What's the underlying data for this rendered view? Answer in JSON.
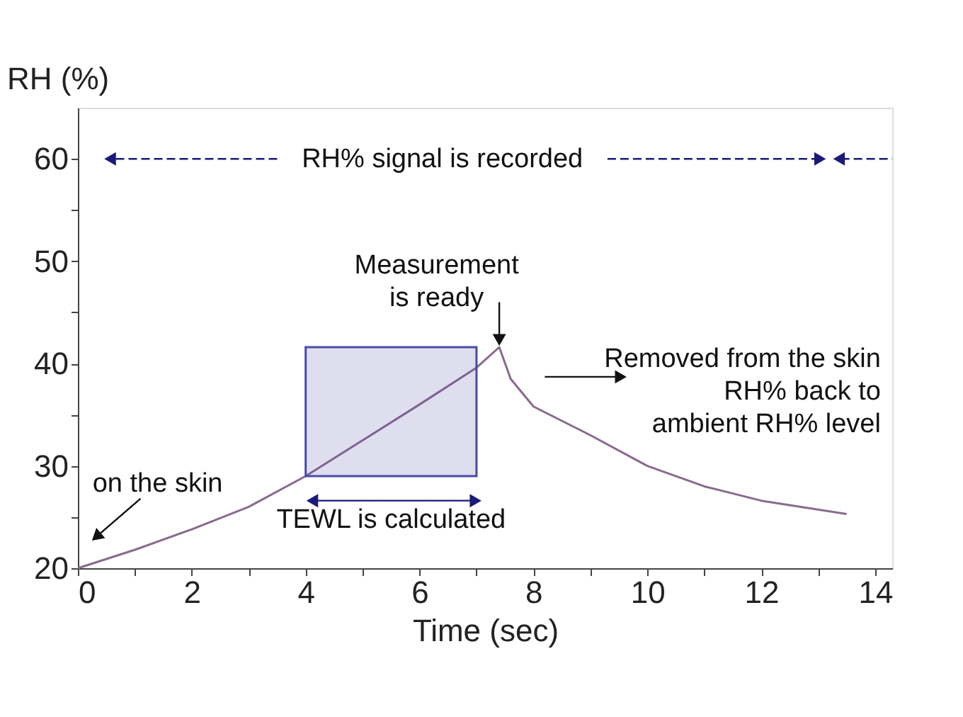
{
  "chart_data": {
    "type": "line",
    "xlabel": "Time (sec)",
    "ylabel": "RH (%)",
    "xlim": [
      0,
      14.3
    ],
    "ylim": [
      20,
      65
    ],
    "xticks": [
      0,
      {
        "value": 1,
        "label": null
      },
      2,
      {
        "value": 3,
        "label": null
      },
      4,
      {
        "value": 5,
        "label": null
      },
      6,
      {
        "value": 7,
        "label": null
      },
      8,
      {
        "value": 9,
        "label": null
      },
      10,
      {
        "value": 11,
        "label": null
      },
      12,
      {
        "value": 13,
        "label": null
      },
      14
    ],
    "yticks": [
      20,
      {
        "value": 25,
        "label": null
      },
      30,
      {
        "value": 35,
        "label": null
      },
      40,
      {
        "value": 45,
        "label": null
      },
      50,
      {
        "value": 55,
        "label": null
      },
      60
    ],
    "series": [
      {
        "color": "#8a6a8e",
        "x": [
          0,
          1,
          2,
          3,
          4,
          5,
          6,
          7,
          7.4,
          7.6,
          8,
          9,
          10,
          11,
          12,
          13.5
        ],
        "values": [
          20,
          21.8,
          23.8,
          26,
          29,
          32.5,
          36,
          39.6,
          41.6,
          38.5,
          35.8,
          33,
          30,
          28,
          26.6,
          25.3
        ]
      }
    ],
    "bands": [
      {
        "axis": "x",
        "from": 4,
        "to": 7,
        "color": "#4a4aa8"
      }
    ],
    "annotations": [
      "RH% signal is recorded",
      {
        "text": "Measurement\nis ready",
        "x": 7.4,
        "y": 41.6
      },
      "Removed from the skin\nRH% back to\nambient RH% level",
      {
        "text": "on the skin",
        "x": 0,
        "y": 20
      },
      "TEWL is calculated"
    ],
    "grid": false,
    "marker": "none",
    "line_style": "solid"
  }
}
